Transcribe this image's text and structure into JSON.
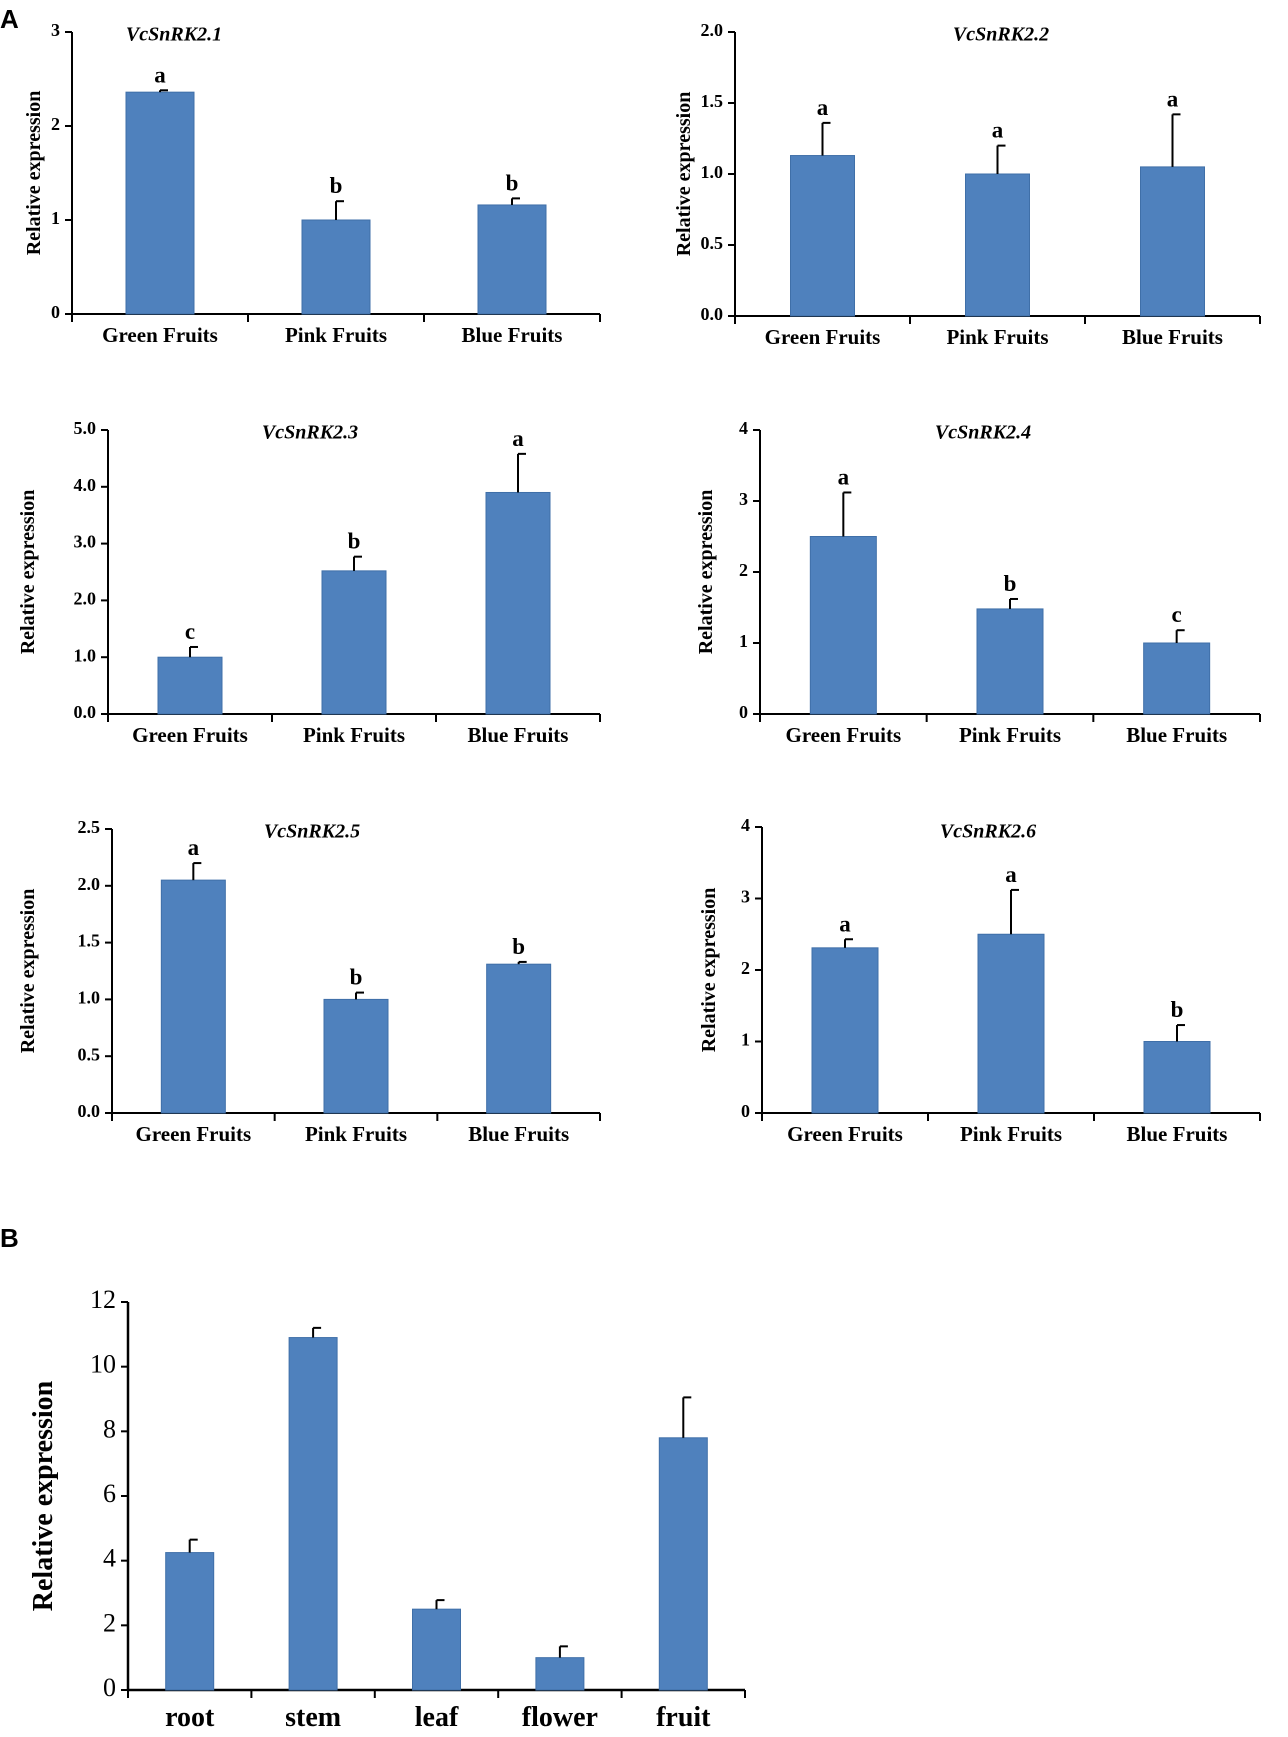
{
  "figure": {
    "panel_a_label": "A",
    "panel_b_label": "B"
  },
  "style": {
    "bar_color": "#4f81bd",
    "bar_edge": "#3f6fa8",
    "axis_color": "#000000"
  },
  "chart_data": [
    {
      "type": "bar",
      "title": "VcSnRK2.1",
      "ylabel": "Relative expression",
      "categories": [
        "Green Fruits",
        "Pink Fruits",
        "Blue Fruits"
      ],
      "values": [
        2.36,
        1.0,
        1.16
      ],
      "errors": [
        0.02,
        0.2,
        0.07
      ],
      "letters": [
        "a",
        "b",
        "b"
      ],
      "ylim": [
        0,
        3
      ],
      "yticks": [
        "0",
        "1",
        "2",
        "3"
      ]
    },
    {
      "type": "bar",
      "title": "VcSnRK2.2",
      "ylabel": "Relative expression",
      "categories": [
        "Green Fruits",
        "Pink Fruits",
        "Blue Fruits"
      ],
      "values": [
        1.13,
        1.0,
        1.05
      ],
      "errors": [
        0.23,
        0.2,
        0.37
      ],
      "letters": [
        "a",
        "a",
        "a"
      ],
      "ylim": [
        0,
        2.0
      ],
      "yticks": [
        "0.0",
        "0.5",
        "1.0",
        "1.5",
        "2.0"
      ]
    },
    {
      "type": "bar",
      "title": "VcSnRK2.3",
      "ylabel": "Relative expression",
      "categories": [
        "Green Fruits",
        "Pink Fruits",
        "Blue Fruits"
      ],
      "values": [
        1.0,
        2.52,
        3.9
      ],
      "errors": [
        0.18,
        0.25,
        0.68
      ],
      "letters": [
        "c",
        "b",
        "a"
      ],
      "ylim": [
        0,
        5.0
      ],
      "yticks": [
        "0.0",
        "1.0",
        "2.0",
        "3.0",
        "4.0",
        "5.0"
      ]
    },
    {
      "type": "bar",
      "title": "VcSnRK2.4",
      "ylabel": "Relative expression",
      "categories": [
        "Green Fruits",
        "Pink Fruits",
        "Blue Fruits"
      ],
      "values": [
        2.5,
        1.48,
        1.0
      ],
      "errors": [
        0.62,
        0.14,
        0.18
      ],
      "letters": [
        "a",
        "b",
        "c"
      ],
      "ylim": [
        0,
        4
      ],
      "yticks": [
        "0",
        "1",
        "2",
        "3",
        "4"
      ]
    },
    {
      "type": "bar",
      "title": "VcSnRK2.5",
      "ylabel": "Relative expression",
      "categories": [
        "Green Fruits",
        "Pink Fruits",
        "Blue Fruits"
      ],
      "values": [
        2.05,
        1.0,
        1.31
      ],
      "errors": [
        0.15,
        0.06,
        0.02
      ],
      "letters": [
        "a",
        "b",
        "b"
      ],
      "ylim": [
        0,
        2.5
      ],
      "yticks": [
        "0.0",
        "0.5",
        "1.0",
        "1.5",
        "2.0",
        "2.5"
      ]
    },
    {
      "type": "bar",
      "title": "VcSnRK2.6",
      "ylabel": "Relative expression",
      "categories": [
        "Green Fruits",
        "Pink Fruits",
        "Blue Fruits"
      ],
      "values": [
        2.31,
        2.5,
        1.0
      ],
      "errors": [
        0.12,
        0.62,
        0.23
      ],
      "letters": [
        "a",
        "a",
        "b"
      ],
      "ylim": [
        0,
        4
      ],
      "yticks": [
        "0",
        "1",
        "2",
        "3",
        "4"
      ]
    },
    {
      "type": "bar",
      "title": "",
      "ylabel": "Relative expression",
      "categories": [
        "root",
        "stem",
        "leaf",
        "flower",
        "fruit"
      ],
      "values": [
        4.25,
        10.9,
        2.5,
        1.0,
        7.8
      ],
      "errors": [
        0.4,
        0.3,
        0.28,
        0.35,
        1.25
      ],
      "letters": [],
      "ylim": [
        0,
        12
      ],
      "yticks": [
        "0",
        "2",
        "4",
        "6",
        "8",
        "10",
        "12"
      ]
    }
  ]
}
